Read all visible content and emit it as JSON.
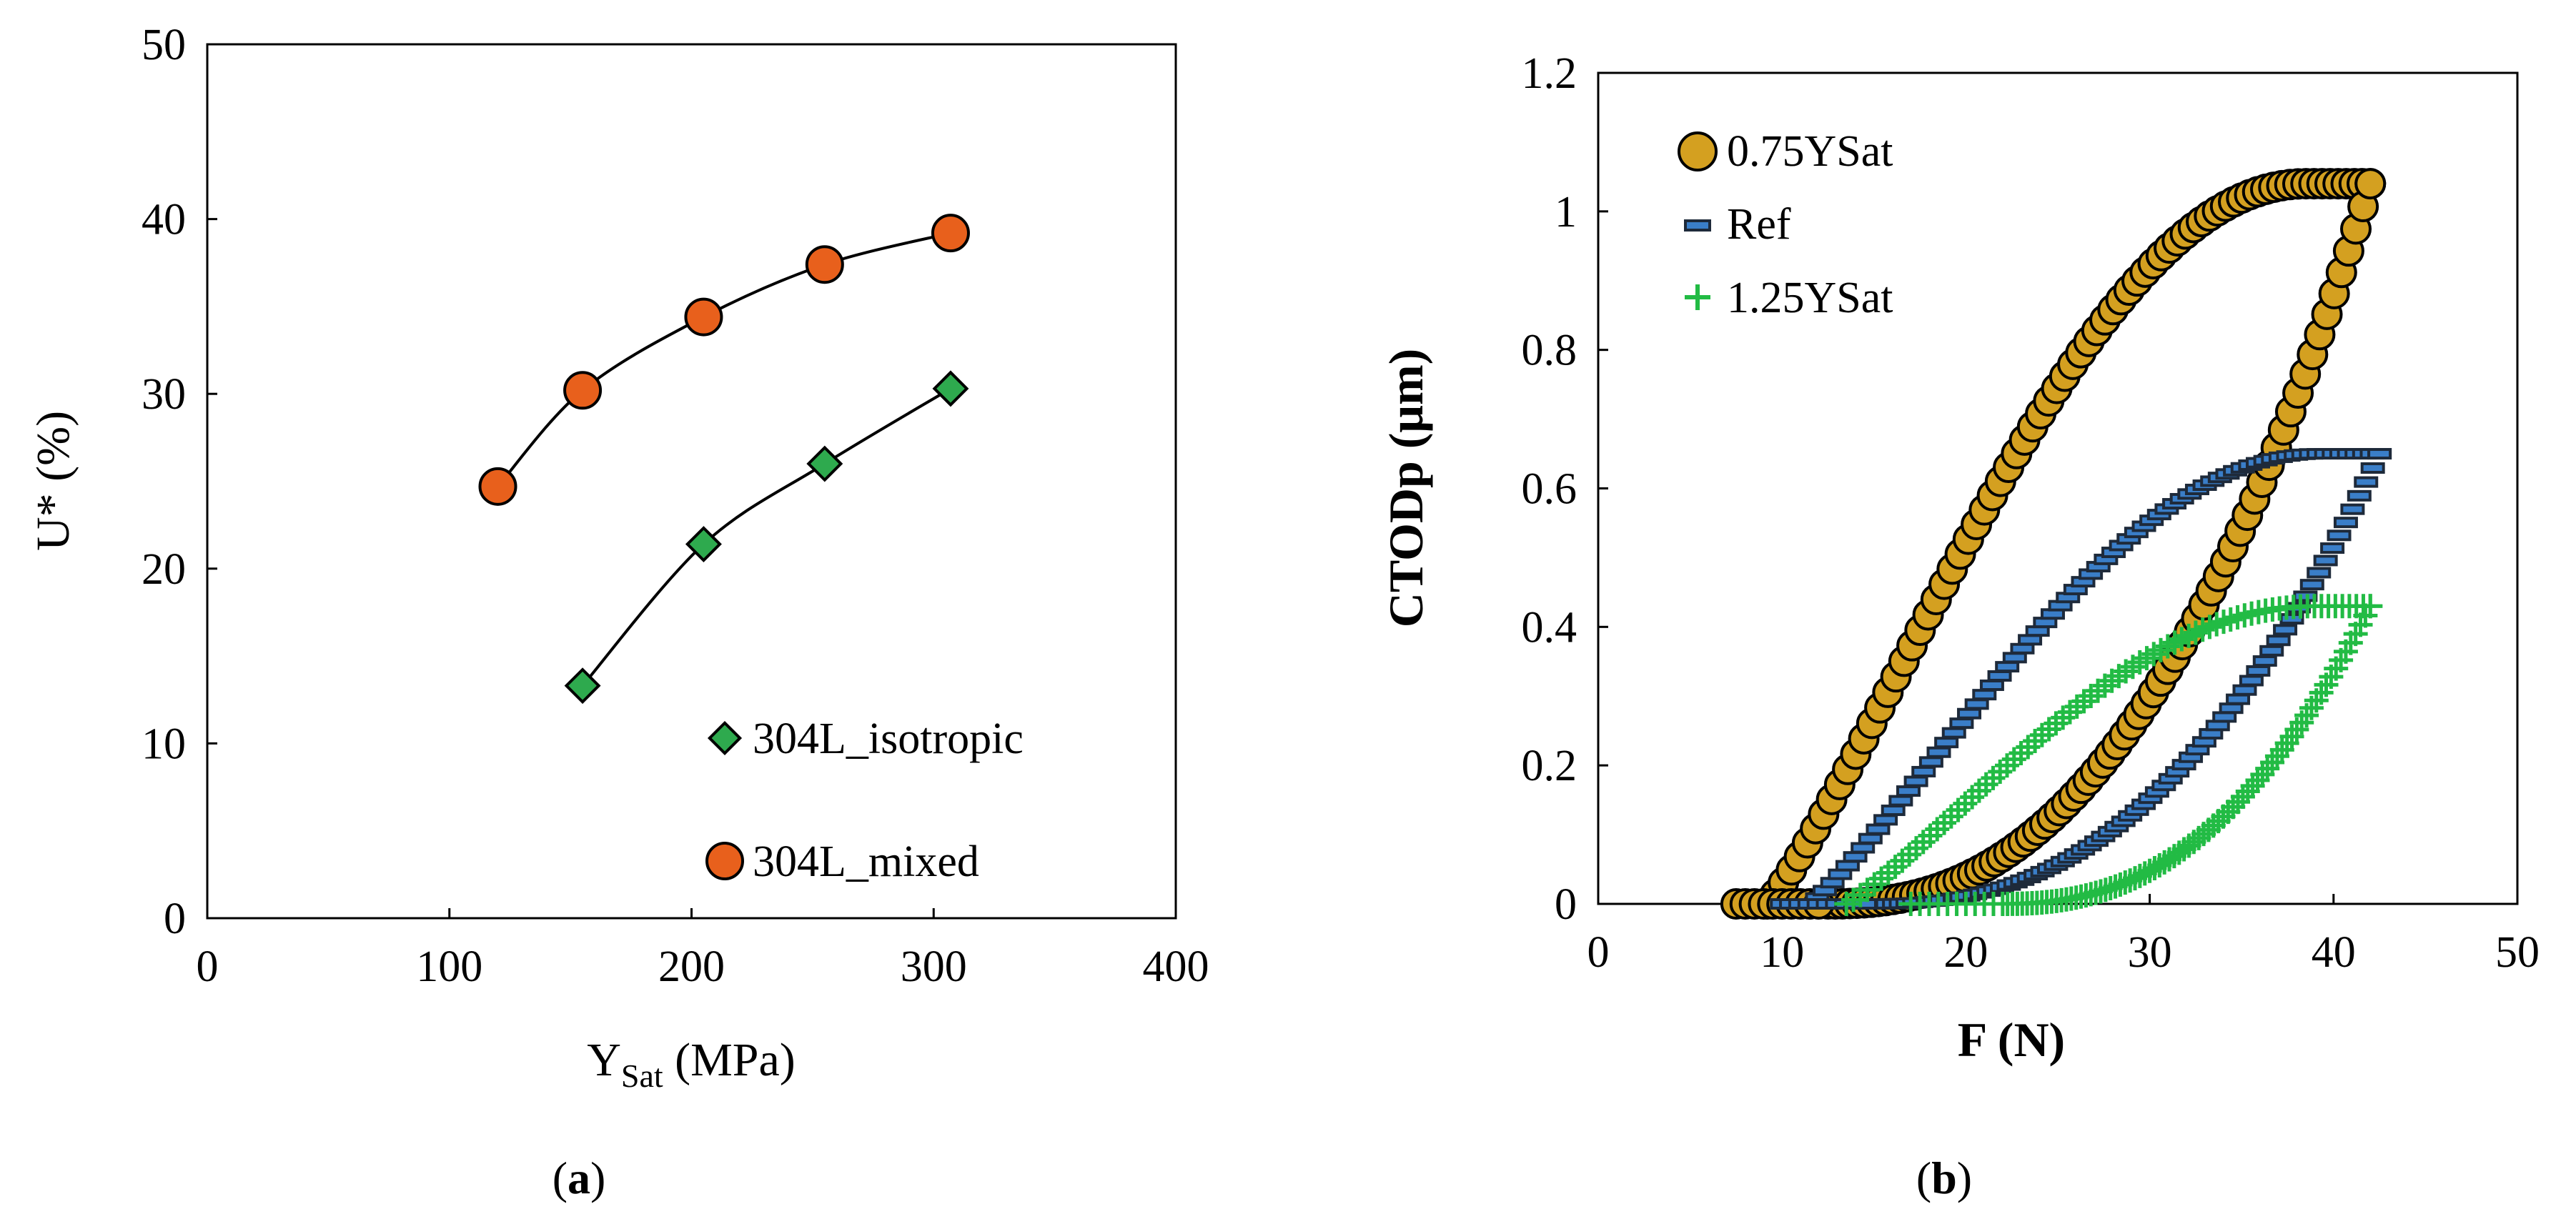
{
  "chart_data": [
    {
      "id": "a",
      "type": "scatter",
      "caption": {
        "open": "(",
        "letter": "a",
        "close": ")"
      },
      "xlabel": {
        "main": "Y",
        "sub": "Sat",
        "unit": " (MPa)"
      },
      "ylabel": "U* (%)",
      "xlim": [
        0,
        400
      ],
      "ylim": [
        0,
        50
      ],
      "xticks": [
        "0",
        "100",
        "200",
        "300",
        "400"
      ],
      "yticks": [
        "0",
        "10",
        "20",
        "30",
        "40",
        "50"
      ],
      "grid": false,
      "legend_position": "bottom-right",
      "series": [
        {
          "name": "304L_isotropic",
          "marker": "diamond",
          "color": "#2eaa4e",
          "x": [
            155,
            205,
            255,
            307
          ],
          "y": [
            13.3,
            21.4,
            26.0,
            30.3
          ]
        },
        {
          "name": "304L_mixed",
          "marker": "circle",
          "color": "#e8601c",
          "x": [
            120,
            155,
            205,
            255,
            307
          ],
          "y": [
            24.7,
            30.2,
            34.4,
            37.4,
            39.2
          ]
        }
      ]
    },
    {
      "id": "b",
      "type": "scatter",
      "caption": {
        "open": "(",
        "letter": "b",
        "close": ")"
      },
      "xlabel": "F (N)",
      "ylabel": "CTODp (μm)",
      "xlim": [
        0,
        50
      ],
      "ylim": [
        0,
        1.2
      ],
      "xticks": [
        "0",
        "10",
        "20",
        "30",
        "40",
        "50"
      ],
      "yticks": [
        "0",
        "0.2",
        "0.4",
        "0.6",
        "0.8",
        "1",
        "1.2"
      ],
      "grid": false,
      "legend_position": "top-left",
      "series": [
        {
          "name": "0.75YSat",
          "marker": "circle",
          "color": "#d4a020",
          "min_force": 9.2,
          "start_force": 12.5,
          "max_force": 42,
          "peak": 1.04
        },
        {
          "name": "Ref",
          "marker": "dash",
          "color": "#3a7ec8",
          "min_force": 11.5,
          "start_force": 15,
          "max_force": 42.5,
          "peak": 0.65
        },
        {
          "name": "1.25YSat",
          "marker": "plus",
          "color": "#22bb44",
          "min_force": 13.5,
          "start_force": 22,
          "max_force": 42,
          "peak": 0.43
        }
      ]
    }
  ]
}
